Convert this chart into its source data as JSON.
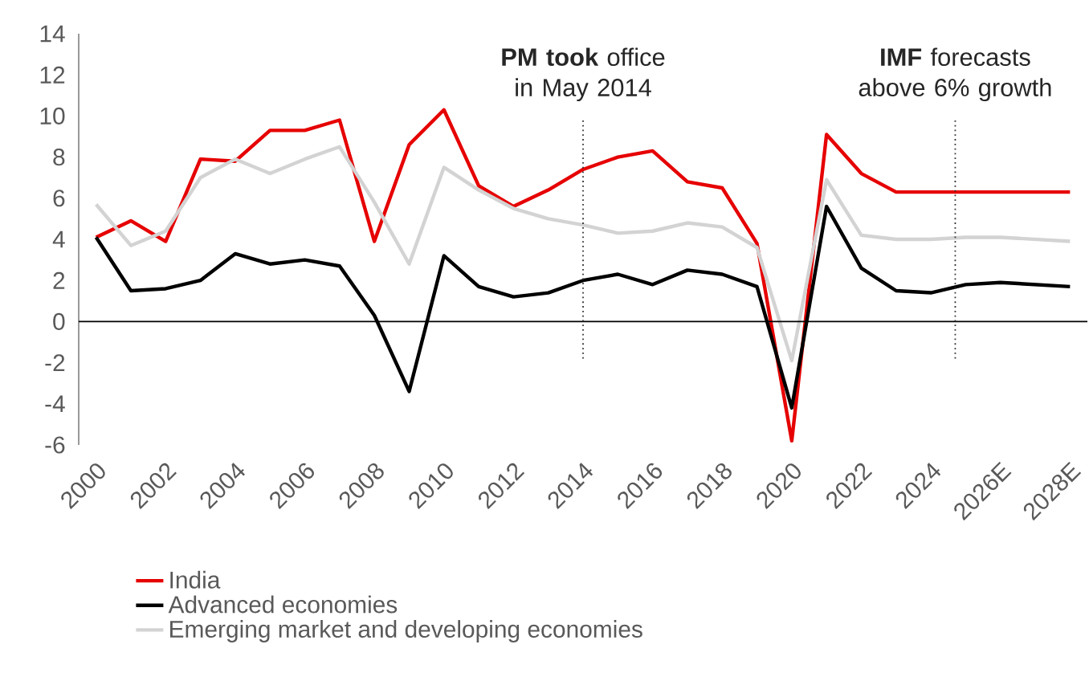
{
  "chart_data": {
    "type": "line",
    "x": [
      2000,
      2001,
      2002,
      2003,
      2004,
      2005,
      2006,
      2007,
      2008,
      2009,
      2010,
      2011,
      2012,
      2013,
      2014,
      2015,
      2016,
      2017,
      2018,
      2019,
      2020,
      2021,
      2022,
      2023,
      2024,
      2025,
      2026,
      2027,
      2028
    ],
    "series": [
      {
        "name": "India",
        "color": "#e60000",
        "values": [
          4.1,
          4.9,
          3.9,
          7.9,
          7.8,
          9.3,
          9.3,
          9.8,
          3.9,
          8.6,
          10.3,
          6.6,
          5.6,
          6.4,
          7.4,
          8.0,
          8.3,
          6.8,
          6.5,
          3.8,
          -5.8,
          9.1,
          7.2,
          6.3,
          6.3,
          6.3,
          6.3,
          6.3,
          6.3
        ]
      },
      {
        "name": "Advanced economies",
        "color": "#000000",
        "values": [
          4.1,
          1.5,
          1.6,
          2.0,
          3.3,
          2.8,
          3.0,
          2.7,
          0.3,
          -3.4,
          3.2,
          1.7,
          1.2,
          1.4,
          2.0,
          2.3,
          1.8,
          2.5,
          2.3,
          1.7,
          -4.2,
          5.6,
          2.6,
          1.5,
          1.4,
          1.8,
          1.9,
          1.8,
          1.7
        ]
      },
      {
        "name": "Emerging market and developing economies",
        "color": "#d3d3d3",
        "values": [
          5.7,
          3.7,
          4.4,
          7.0,
          7.9,
          7.2,
          7.9,
          8.5,
          5.8,
          2.8,
          7.5,
          6.4,
          5.5,
          5.0,
          4.7,
          4.3,
          4.4,
          4.8,
          4.6,
          3.6,
          -1.9,
          6.9,
          4.2,
          4.0,
          4.0,
          4.1,
          4.1,
          4.0,
          3.9
        ]
      }
    ],
    "xlim": [
      1999.5,
      2028.5
    ],
    "xticks": [
      2000,
      2002,
      2004,
      2006,
      2008,
      2010,
      2012,
      2014,
      2016,
      2018,
      2020,
      2022,
      2024,
      {
        "value": 2026,
        "label": "2026E"
      },
      {
        "value": 2028,
        "label": "2028E"
      }
    ],
    "ylim": [
      -6,
      14
    ],
    "yticks": [
      -6,
      -4,
      -2,
      0,
      2,
      4,
      6,
      8,
      10,
      12,
      14
    ],
    "ref_lines": [
      {
        "axis": "x",
        "value": 2014,
        "label": "**PM took** office in May 2014",
        "color": "#333333",
        "line_style": "dotted"
      },
      {
        "axis": "x",
        "value": 2024.7,
        "label": "**IMF** forecasts above 6% growth",
        "color": "#333333",
        "line_style": "dotted"
      }
    ],
    "legend": "bottom",
    "marker": "none",
    "line_style": "solid"
  }
}
